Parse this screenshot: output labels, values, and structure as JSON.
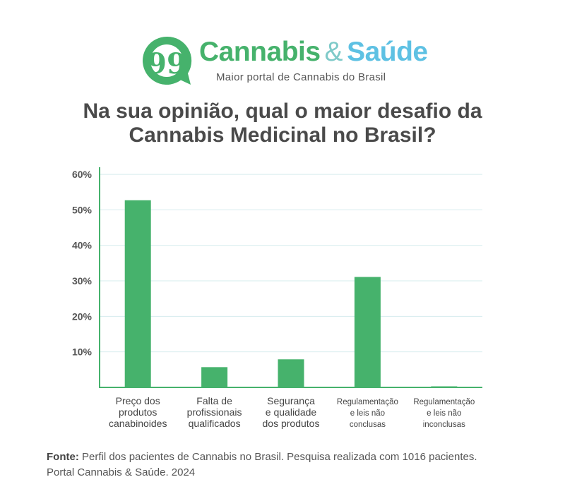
{
  "brand": {
    "name_part1": "Cannabis",
    "name_amp": "&",
    "name_part2": "Saúde",
    "tagline": "Maior portal de Cannabis do Brasil",
    "logo_glyph": "99",
    "colors": {
      "green": "#46b26c",
      "blue": "#5ec1e3"
    }
  },
  "title": {
    "line1": "Na sua opinião, qual o maior desafio da",
    "line2": "Cannabis Medicinal no Brasil?"
  },
  "chart_data": {
    "type": "bar",
    "categories": [
      [
        "Preço dos",
        "produtos",
        "canabinoides"
      ],
      [
        "Falta de",
        "profissionais",
        "qualificados"
      ],
      [
        "Segurança",
        "e qualidade",
        "dos produtos"
      ],
      [
        "Regulamentação",
        "e leis não",
        "conclusas"
      ],
      [
        "Regulamentação",
        "e leis não",
        "inconclusas"
      ]
    ],
    "values": [
      52.7,
      5.7,
      7.9,
      31.1,
      0.3
    ],
    "ylim": [
      0,
      62
    ],
    "yticks": [
      10,
      20,
      30,
      40,
      50,
      60
    ],
    "ytick_labels": [
      "10%",
      "20%",
      "30%",
      "40%",
      "50%",
      "60%"
    ],
    "grid": true,
    "bar_color": "#46b26c",
    "axis_color": "#46b26c",
    "grid_color": "#d6ecee"
  },
  "footer": {
    "source_label": "Fonte:",
    "source_text": "Perfil dos pacientes de Cannabis no Brasil. Pesquisa realizada com 1016 pacientes.",
    "line2": "Portal Cannabis & Saúde. 2024"
  }
}
